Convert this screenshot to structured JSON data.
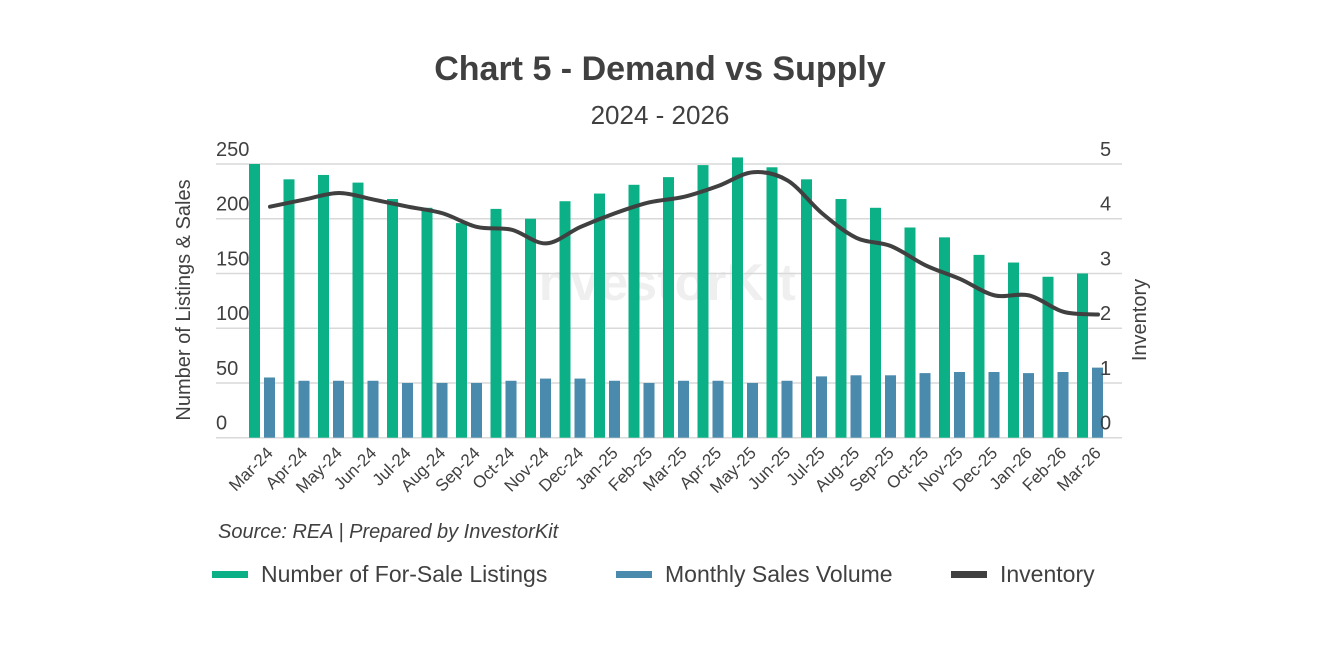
{
  "chart_data": {
    "type": "bar",
    "title": "Chart 5 - Demand vs Supply",
    "subtitle": "2024 - 2026",
    "ylabel": "Number of Listings & Sales",
    "y2label": "Inventory",
    "ylim": [
      0,
      250
    ],
    "y2lim": [
      0,
      5
    ],
    "yticks": [
      "0",
      "50",
      "100",
      "150",
      "200",
      "250"
    ],
    "y2ticks": [
      "0",
      "1",
      "2",
      "3",
      "4",
      "5"
    ],
    "grid": true,
    "legend_position": "bottom",
    "source": "Source: REA | Prepared by InvestorKit",
    "watermark": "InvestorKit",
    "categories": [
      "Mar-24",
      "Apr-24",
      "May-24",
      "Jun-24",
      "Jul-24",
      "Aug-24",
      "Sep-24",
      "Oct-24",
      "Nov-24",
      "Dec-24",
      "Jan-25",
      "Feb-25",
      "Mar-25",
      "Apr-25",
      "May-25",
      "Jun-25",
      "Jul-25",
      "Aug-25",
      "Sep-25",
      "Oct-25",
      "Nov-25",
      "Dec-25",
      "Jan-26",
      "Feb-26",
      "Mar-26"
    ],
    "series": [
      {
        "name": "Number of For-Sale Listings",
        "type": "bar",
        "axis": "left",
        "color": "#0bb086",
        "values": [
          250,
          236,
          240,
          233,
          218,
          210,
          196,
          209,
          200,
          216,
          223,
          231,
          238,
          249,
          256,
          247,
          236,
          218,
          210,
          192,
          183,
          167,
          160,
          147,
          150
        ]
      },
      {
        "name": "Monthly Sales Volume",
        "type": "bar",
        "axis": "left",
        "color": "#4a8aad",
        "values": [
          55,
          52,
          52,
          52,
          50,
          50,
          50,
          52,
          54,
          54,
          52,
          50,
          52,
          52,
          50,
          52,
          56,
          57,
          57,
          59,
          60,
          60,
          59,
          60,
          64
        ]
      },
      {
        "name": "Inventory",
        "type": "line",
        "axis": "right",
        "color": "#404040",
        "values": [
          4.22,
          4.35,
          4.47,
          4.35,
          4.22,
          4.1,
          3.85,
          3.8,
          3.55,
          3.85,
          4.1,
          4.3,
          4.4,
          4.6,
          4.85,
          4.7,
          4.1,
          3.65,
          3.5,
          3.15,
          2.9,
          2.6,
          2.6,
          2.3,
          2.25
        ]
      }
    ]
  }
}
